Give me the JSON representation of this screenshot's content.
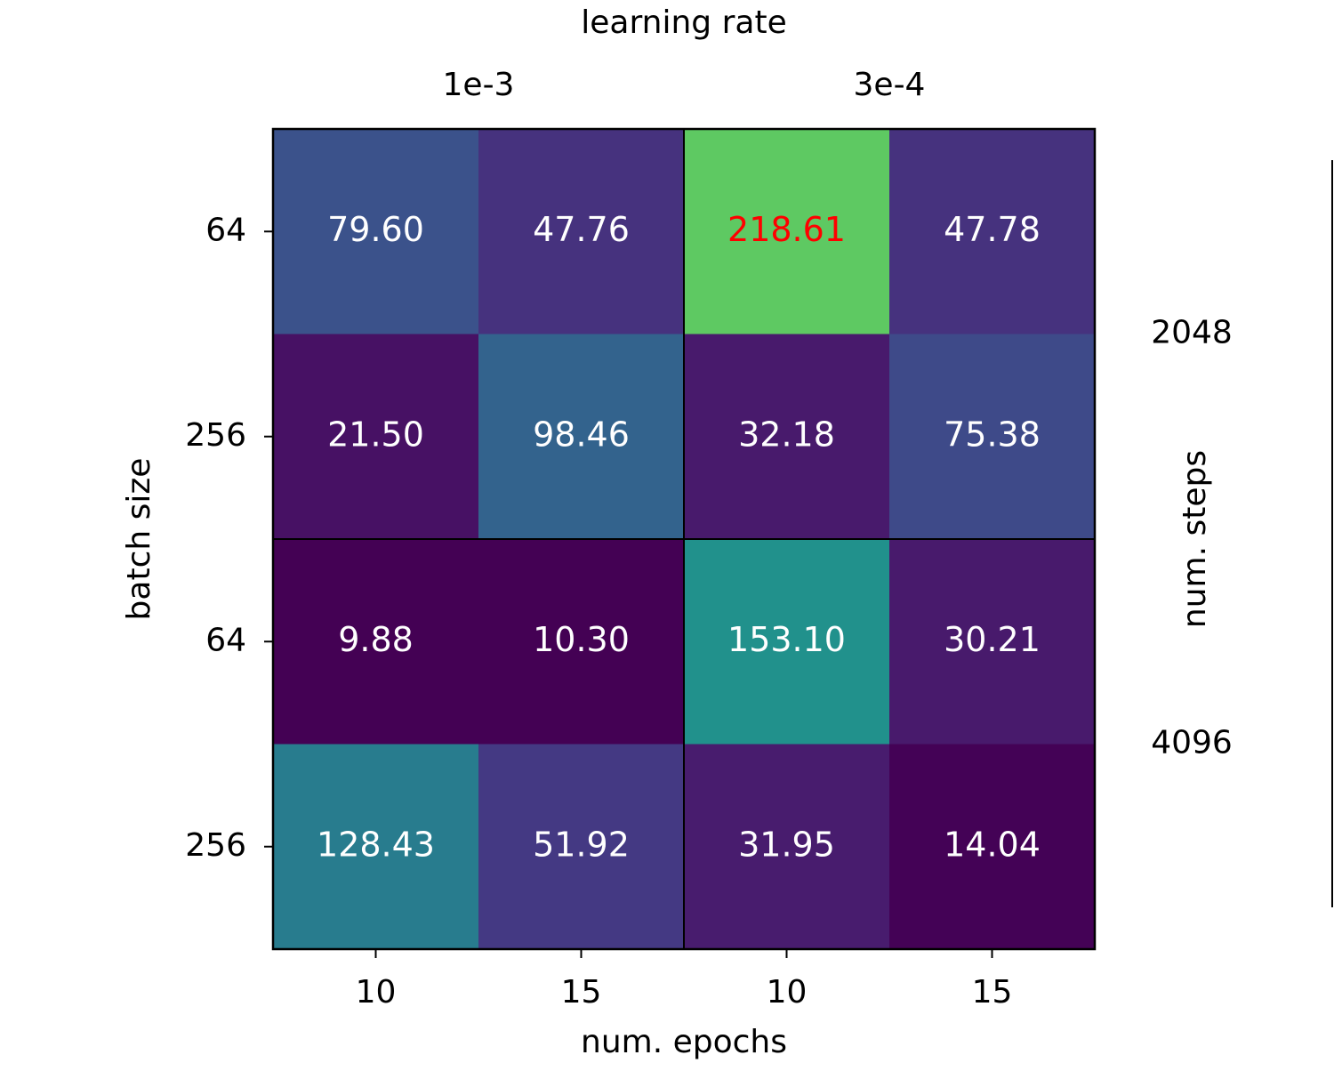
{
  "chart_data": {
    "type": "heatmap",
    "title": "learning rate",
    "x_groups": [
      "1e-3",
      "3e-4"
    ],
    "y_groups": [
      "2048",
      "4096"
    ],
    "y_group_label": "num. steps",
    "xlabel": "num. epochs",
    "ylabel": "batch size",
    "x_categories": [
      "10",
      "15",
      "10",
      "15"
    ],
    "y_categories": [
      "64",
      "256",
      "64",
      "256"
    ],
    "values": [
      [
        79.6,
        47.76,
        218.61,
        47.78
      ],
      [
        21.5,
        98.46,
        32.18,
        75.38
      ],
      [
        9.88,
        10.3,
        153.1,
        30.21
      ],
      [
        128.43,
        51.92,
        31.95,
        14.04
      ]
    ],
    "value_labels": [
      [
        "79.60",
        "47.76",
        "218.61",
        "47.78"
      ],
      [
        "21.50",
        "98.46",
        "32.18",
        "75.38"
      ],
      [
        "9.88",
        "10.30",
        "153.10",
        "30.21"
      ],
      [
        "128.43",
        "51.92",
        "31.95",
        "14.04"
      ]
    ],
    "colors": [
      [
        "#3b528b",
        "#46327e",
        "#5ec962",
        "#46327e"
      ],
      [
        "#471164",
        "#33638d",
        "#481a6c",
        "#3e4a89"
      ],
      [
        "#440154",
        "#440154",
        "#21918c",
        "#481a6c"
      ],
      [
        "#287c8e",
        "#443983",
        "#481c6e",
        "#440256"
      ]
    ],
    "value_label_colors": [
      [
        "#ffffff",
        "#ffffff",
        "#ff0000",
        "#ffffff"
      ],
      [
        "#ffffff",
        "#ffffff",
        "#ffffff",
        "#ffffff"
      ],
      [
        "#ffffff",
        "#ffffff",
        "#ffffff",
        "#ffffff"
      ],
      [
        "#ffffff",
        "#ffffff",
        "#ffffff",
        "#ffffff"
      ]
    ]
  }
}
